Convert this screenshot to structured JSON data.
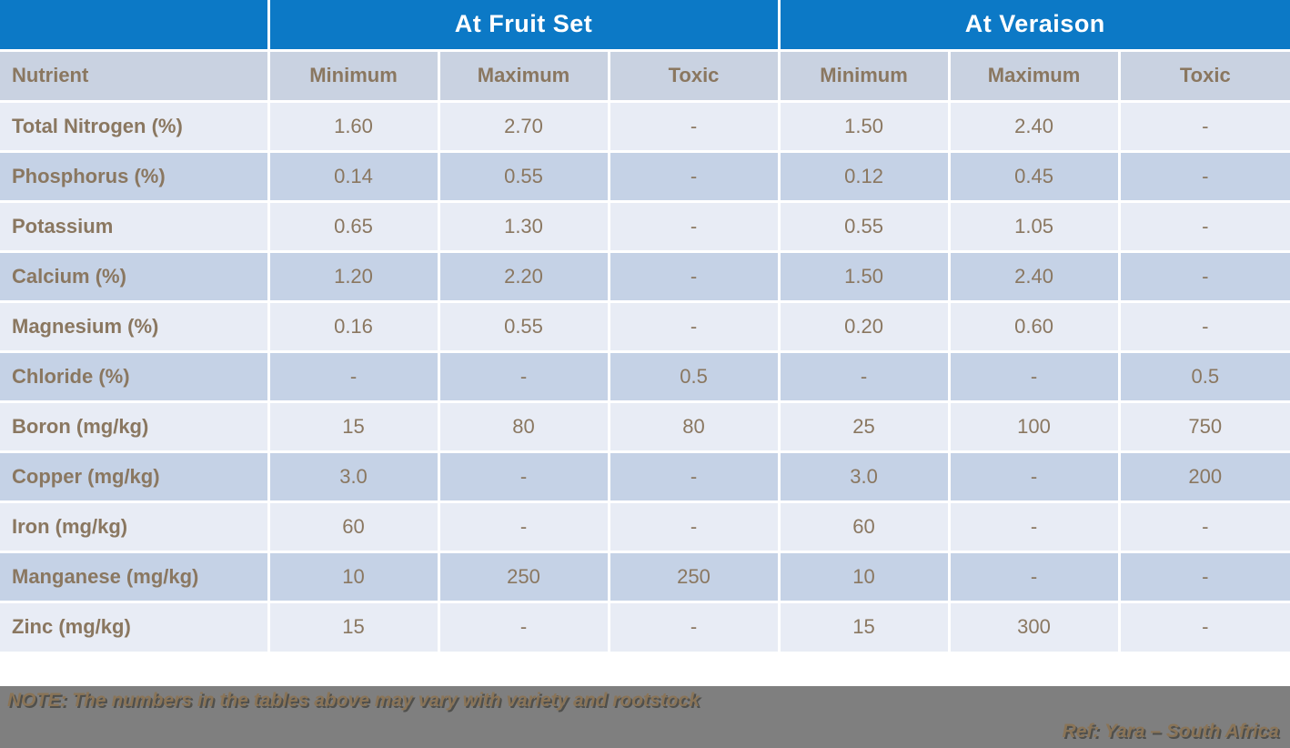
{
  "header": {
    "group1": "At Fruit Set",
    "group2": "At Veraison",
    "nutrient_col": "Nutrient",
    "sub_cols": [
      "Minimum",
      "Maximum",
      "Toxic",
      "Minimum",
      "Maximum",
      "Toxic"
    ]
  },
  "table": {
    "rows": [
      {
        "name": "Total Nitrogen (%)",
        "values": [
          "1.60",
          "2.70",
          "-",
          "1.50",
          "2.40",
          "-"
        ]
      },
      {
        "name": "Phosphorus (%)",
        "values": [
          "0.14",
          "0.55",
          "-",
          "0.12",
          "0.45",
          "-"
        ]
      },
      {
        "name": "Potassium",
        "values": [
          "0.65",
          "1.30",
          "-",
          "0.55",
          "1.05",
          "-"
        ]
      },
      {
        "name": "Calcium (%)",
        "values": [
          "1.20",
          "2.20",
          "-",
          "1.50",
          "2.40",
          "-"
        ]
      },
      {
        "name": "Magnesium (%)",
        "values": [
          "0.16",
          "0.55",
          "-",
          "0.20",
          "0.60",
          "-"
        ]
      },
      {
        "name": "Chloride (%)",
        "values": [
          "-",
          "-",
          "0.5",
          "-",
          "-",
          "0.5"
        ]
      },
      {
        "name": "Boron (mg/kg)",
        "values": [
          "15",
          "80",
          "80",
          "25",
          "100",
          "750"
        ]
      },
      {
        "name": "Copper (mg/kg)",
        "values": [
          "3.0",
          "-",
          "-",
          "3.0",
          "-",
          "200"
        ]
      },
      {
        "name": "Iron (mg/kg)",
        "values": [
          "60",
          "-",
          "-",
          "60",
          "-",
          "-"
        ]
      },
      {
        "name": "Manganese (mg/kg)",
        "values": [
          "10",
          "250",
          "250",
          "10",
          "-",
          "-"
        ]
      },
      {
        "name": "Zinc (mg/kg)",
        "values": [
          "15",
          "-",
          "-",
          "15",
          "300",
          "-"
        ]
      }
    ]
  },
  "footer": {
    "note": "NOTE: The numbers in the tables above may vary with variety and rootstock",
    "ref": "Ref: Yara – South Africa"
  },
  "colors": {
    "header_blue": "#0c79c6",
    "colhead_bg": "#c9d2e1",
    "row_light": "#e8ecf5",
    "row_dark": "#c5d2e6",
    "text_brown": "#8a7760",
    "footer_gray": "#7f7f7f",
    "footer_text": "#8a7457"
  }
}
